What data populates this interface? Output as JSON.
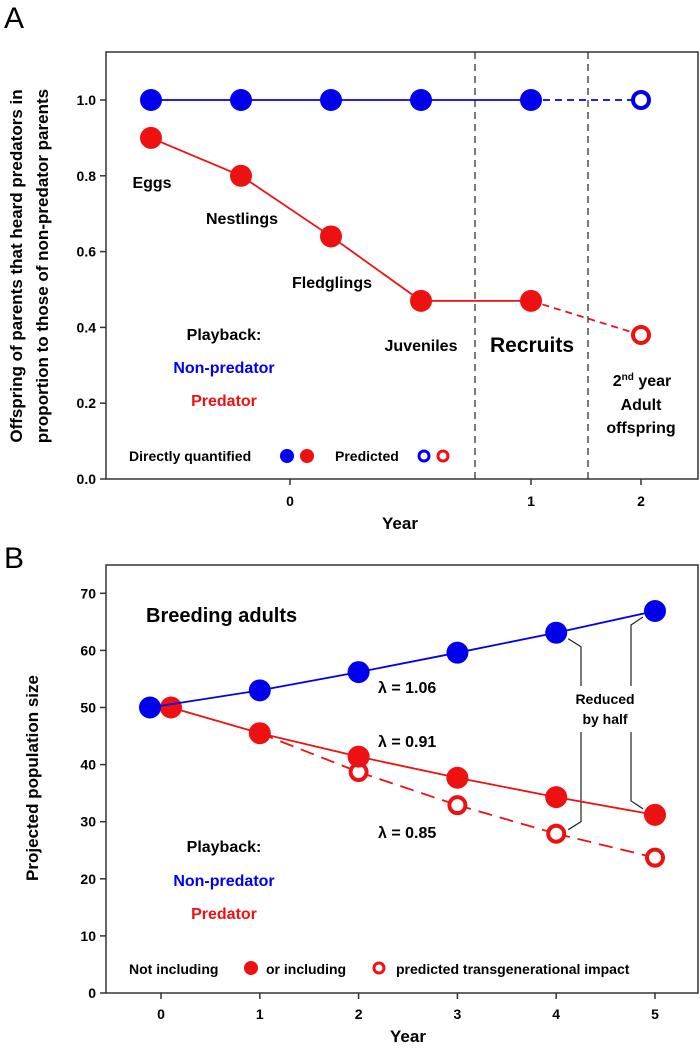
{
  "colors": {
    "blue": "#0000ee",
    "red": "#ee1111",
    "black": "#111111",
    "gray": "#555555"
  },
  "chart_data": [
    {
      "panel": "A",
      "type": "line",
      "ylabel_line1": "Offspring of parents that heard predators in",
      "ylabel_line2": "proportion to those of non-predator parents",
      "xlabel": "Year",
      "ylim": [
        0.0,
        1.1
      ],
      "yticks": [
        "0.0",
        "0.2",
        "0.4",
        "0.6",
        "0.8",
        "1.0"
      ],
      "xticks": [
        {
          "label": "0",
          "stage": 1.5
        },
        {
          "label": "1",
          "stage": 4
        },
        {
          "label": "2",
          "stage": 5
        }
      ],
      "stages": [
        "Eggs",
        "Nestlings",
        "Fledglings",
        "Juveniles",
        "Recruits",
        "2nd year Adult offspring"
      ],
      "series": [
        {
          "name": "Non-predator",
          "color": "blue",
          "values": [
            1.0,
            1.0,
            1.0,
            1.0,
            1.0,
            1.0
          ],
          "predicted": [
            false,
            false,
            false,
            false,
            false,
            true
          ]
        },
        {
          "name": "Predator",
          "color": "red",
          "values": [
            0.9,
            0.8,
            0.64,
            0.47,
            0.47,
            0.38
          ],
          "predicted": [
            false,
            false,
            false,
            false,
            false,
            true
          ]
        }
      ],
      "annotations": {
        "eggs": "Eggs",
        "nestlings": "Nestlings",
        "fledglings": "Fledglings",
        "juveniles": "Juveniles",
        "recruits": "Recruits",
        "year2_a": "2",
        "year2_sup": "nd",
        "year2_b": " year",
        "adult": "Adult",
        "offspring": "offspring"
      },
      "legend": {
        "playback": "Playback:",
        "nonpredator": "Non-predator",
        "predator": "Predator",
        "direct": "Directly quantified",
        "predicted": "Predicted"
      }
    },
    {
      "panel": "B",
      "type": "line",
      "title": "Breeding adults",
      "ylabel": "Projected population size",
      "xlabel": "Year",
      "ylim": [
        0,
        70
      ],
      "yticks": [
        "0",
        "10",
        "20",
        "30",
        "40",
        "50",
        "60",
        "70"
      ],
      "x": [
        0,
        1,
        2,
        3,
        4,
        5
      ],
      "xticks": [
        "0",
        "1",
        "2",
        "3",
        "4",
        "5"
      ],
      "series": [
        {
          "name": "Non-predator",
          "color": "blue",
          "style": "solid-filled",
          "values": [
            50,
            53,
            56.2,
            59.6,
            63.1,
            66.9
          ],
          "lambda": "λ = 1.06"
        },
        {
          "name": "Predator (not including transgenerational impact)",
          "color": "red",
          "style": "solid-filled",
          "values": [
            50,
            45.5,
            41.4,
            37.7,
            34.3,
            31.2
          ],
          "lambda": "λ = 0.91"
        },
        {
          "name": "Predator (including transgenerational impact)",
          "color": "red",
          "style": "dashed-open",
          "values": [
            50,
            45.5,
            38.7,
            32.9,
            27.9,
            23.7
          ],
          "lambda": "λ = 0.85"
        }
      ],
      "annotations": {
        "reduced1": "Reduced",
        "reduced2": "by half"
      },
      "legend": {
        "playback": "Playback:",
        "nonpredator": "Non-predator",
        "predator": "Predator",
        "not_including": "Not including",
        "or_including": "or including",
        "predicted_impact": "predicted transgenerational impact"
      }
    }
  ],
  "panel_labels": {
    "a": "A",
    "b": "B"
  }
}
